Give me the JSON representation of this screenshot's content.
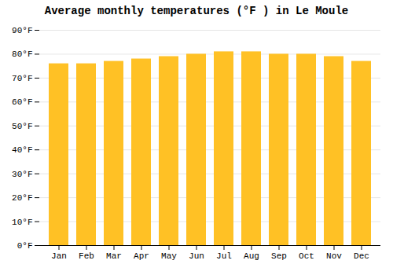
{
  "chart_data": {
    "type": "bar",
    "title": "Average monthly temperatures (°F ) in Le Moule",
    "categories": [
      "Jan",
      "Feb",
      "Mar",
      "Apr",
      "May",
      "Jun",
      "Jul",
      "Aug",
      "Sep",
      "Oct",
      "Nov",
      "Dec"
    ],
    "values": [
      76,
      76,
      77,
      78,
      79,
      80,
      81,
      81,
      80,
      80,
      79,
      77
    ],
    "color": "#FFC125",
    "ylim": [
      0,
      90
    ],
    "yticks": [
      {
        "value": 0,
        "label": "0°F"
      },
      {
        "value": 10,
        "label": "10°F"
      },
      {
        "value": 20,
        "label": "20°F"
      },
      {
        "value": 30,
        "label": "30°F"
      },
      {
        "value": 40,
        "label": "40°F"
      },
      {
        "value": 50,
        "label": "50°F"
      },
      {
        "value": 60,
        "label": "60°F"
      },
      {
        "value": 70,
        "label": "70°F"
      },
      {
        "value": 80,
        "label": "80°F"
      },
      {
        "value": 90,
        "label": "90°F"
      }
    ],
    "grid": true
  }
}
